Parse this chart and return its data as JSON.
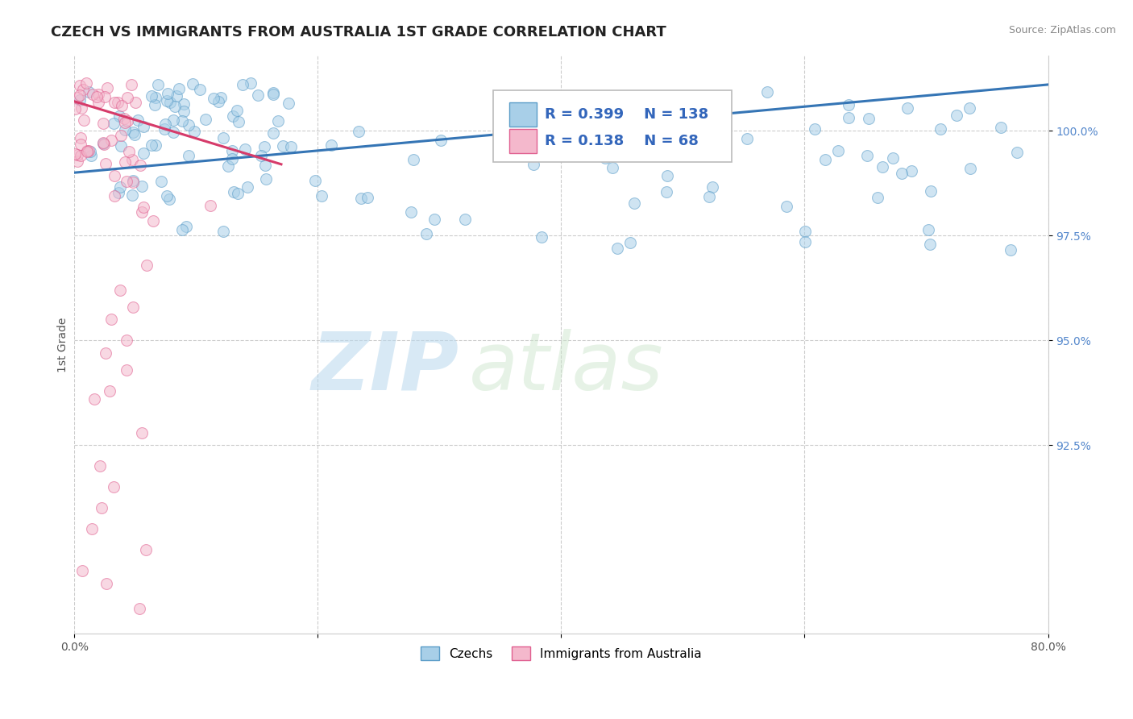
{
  "title": "CZECH VS IMMIGRANTS FROM AUSTRALIA 1ST GRADE CORRELATION CHART",
  "source_text": "Source: ZipAtlas.com",
  "ylabel": "1st Grade",
  "watermark": "ZIPatlas",
  "xlim": [
    0.0,
    80.0
  ],
  "ylim": [
    88.0,
    101.8
  ],
  "xticks": [
    0.0,
    20.0,
    40.0,
    60.0,
    80.0
  ],
  "xticklabels": [
    "0.0%",
    "",
    "",
    "",
    "80.0%"
  ],
  "yticks": [
    92.5,
    95.0,
    97.5,
    100.0
  ],
  "yticklabels": [
    "92.5%",
    "95.0%",
    "97.5%",
    "100.0%"
  ],
  "legend_blue_label": "Czechs",
  "legend_pink_label": "Immigrants from Australia",
  "R_blue": 0.399,
  "N_blue": 138,
  "R_pink": 0.138,
  "N_pink": 68,
  "blue_color": "#a8cfe8",
  "blue_edge_color": "#5b9dc8",
  "pink_color": "#f4b8cc",
  "pink_edge_color": "#e06090",
  "trendline_blue_color": "#3575b5",
  "trendline_pink_color": "#d63b6a",
  "dot_size": 100,
  "dot_alpha": 0.55,
  "grid_color": "#cccccc",
  "background_color": "#ffffff",
  "title_fontsize": 13,
  "axis_label_fontsize": 10,
  "tick_fontsize": 10,
  "legend_fontsize": 11,
  "blue_trendline_x": [
    0.0,
    80.0
  ],
  "blue_trendline_y": [
    99.0,
    101.1
  ],
  "pink_trendline_x": [
    0.0,
    17.0
  ],
  "pink_trendline_y": [
    100.7,
    99.2
  ]
}
